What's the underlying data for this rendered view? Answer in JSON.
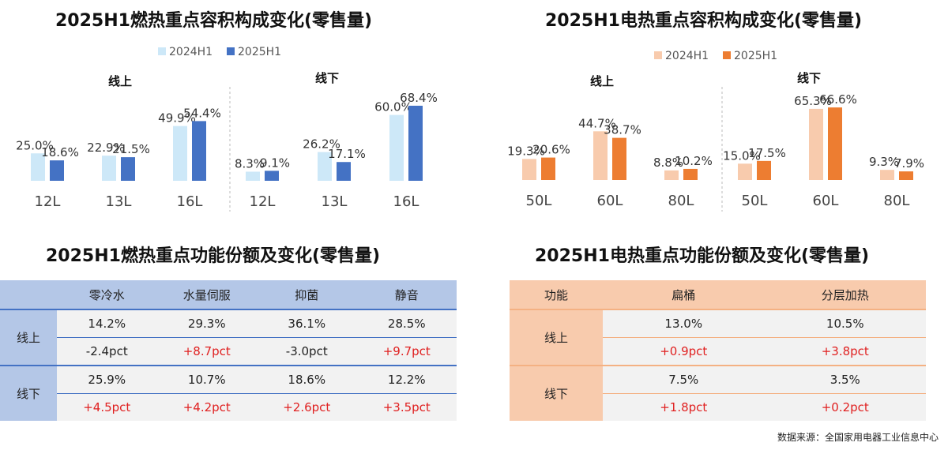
{
  "titles": {
    "gas_chart": "2025H1燃热重点容积构成变化(零售量)",
    "elec_chart": "2025H1电热重点容积构成变化(零售量)",
    "gas_table": "2025H1燃热重点功能份额及变化(零售量)",
    "elec_table": "2025H1电热重点功能份额及变化(零售量)"
  },
  "chart_data": [
    {
      "type": "bar",
      "title": "2025H1燃热重点容积构成变化(零售量)",
      "groups": [
        "线上",
        "线下"
      ],
      "categories": [
        "12L",
        "13L",
        "16L",
        "12L",
        "13L",
        "16L"
      ],
      "series": [
        {
          "name": "2024H1",
          "color": "#cde8f8",
          "values": [
            25.0,
            22.9,
            49.9,
            8.3,
            26.2,
            60.0
          ]
        },
        {
          "name": "2025H1",
          "color": "#4472c4",
          "values": [
            18.6,
            21.5,
            54.4,
            9.1,
            17.1,
            68.4
          ]
        }
      ],
      "legend": "top",
      "grid": false
    },
    {
      "type": "bar",
      "title": "2025H1电热重点容积构成变化(零售量)",
      "groups": [
        "线上",
        "线下"
      ],
      "categories": [
        "50L",
        "60L",
        "80L",
        "50L",
        "60L",
        "80L"
      ],
      "series": [
        {
          "name": "2024H1",
          "color": "#f8cbad",
          "values": [
            19.3,
            44.7,
            8.8,
            15.0,
            65.3,
            9.3
          ]
        },
        {
          "name": "2025H1",
          "color": "#ed7d31",
          "values": [
            20.6,
            38.7,
            10.2,
            17.5,
            66.6,
            7.9
          ]
        }
      ],
      "legend": "top",
      "grid": false
    }
  ],
  "gas_table": {
    "headers": [
      "",
      "零冷水",
      "水量伺服",
      "抑菌",
      "静音"
    ],
    "rows": [
      {
        "group": "线上",
        "share": [
          "14.2%",
          "29.3%",
          "36.1%",
          "28.5%"
        ],
        "change": [
          "-2.4pct",
          "+8.7pct",
          "-3.0pct",
          "+9.7pct"
        ]
      },
      {
        "group": "线下",
        "share": [
          "25.9%",
          "10.7%",
          "18.6%",
          "12.2%"
        ],
        "change": [
          "+4.5pct",
          "+4.2pct",
          "+2.6pct",
          "+3.5pct"
        ]
      }
    ]
  },
  "elec_table": {
    "headers": [
      "功能",
      "扁桶",
      "分层加热"
    ],
    "rows": [
      {
        "group": "线上",
        "share": [
          "13.0%",
          "10.5%"
        ],
        "change": [
          "+0.9pct",
          "+3.8pct"
        ]
      },
      {
        "group": "线下",
        "share": [
          "7.5%",
          "3.5%"
        ],
        "change": [
          "+1.8pct",
          "+0.2pct"
        ]
      }
    ]
  },
  "source": "数据来源：全国家用电器工业信息中心"
}
